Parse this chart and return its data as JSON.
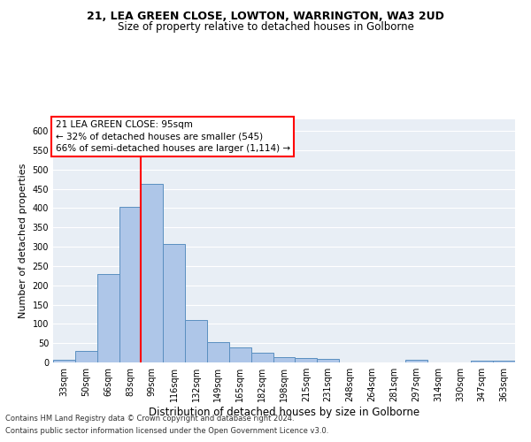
{
  "title": "21, LEA GREEN CLOSE, LOWTON, WARRINGTON, WA3 2UD",
  "subtitle": "Size of property relative to detached houses in Golborne",
  "xlabel": "Distribution of detached houses by size in Golborne",
  "ylabel": "Number of detached properties",
  "categories": [
    "33sqm",
    "50sqm",
    "66sqm",
    "83sqm",
    "99sqm",
    "116sqm",
    "132sqm",
    "149sqm",
    "165sqm",
    "182sqm",
    "198sqm",
    "215sqm",
    "231sqm",
    "248sqm",
    "264sqm",
    "281sqm",
    "297sqm",
    "314sqm",
    "330sqm",
    "347sqm",
    "363sqm"
  ],
  "values": [
    6,
    30,
    228,
    403,
    463,
    307,
    110,
    53,
    39,
    26,
    14,
    12,
    10,
    0,
    0,
    0,
    6,
    0,
    0,
    5,
    5
  ],
  "bar_color": "#aec6e8",
  "bar_edge_color": "#5a8fc0",
  "vline_x_index": 3.5,
  "vline_color": "red",
  "annotation_text": "21 LEA GREEN CLOSE: 95sqm\n← 32% of detached houses are smaller (545)\n66% of semi-detached houses are larger (1,114) →",
  "background_color": "#e8eef5",
  "footer_line1": "Contains HM Land Registry data © Crown copyright and database right 2024.",
  "footer_line2": "Contains public sector information licensed under the Open Government Licence v3.0.",
  "ylim": [
    0,
    630
  ],
  "yticks": [
    0,
    50,
    100,
    150,
    200,
    250,
    300,
    350,
    400,
    450,
    500,
    550,
    600
  ],
  "title_fontsize": 9,
  "subtitle_fontsize": 8.5,
  "xlabel_fontsize": 8.5,
  "ylabel_fontsize": 8,
  "tick_fontsize": 7,
  "annotation_fontsize": 7.5,
  "footer_fontsize": 6
}
